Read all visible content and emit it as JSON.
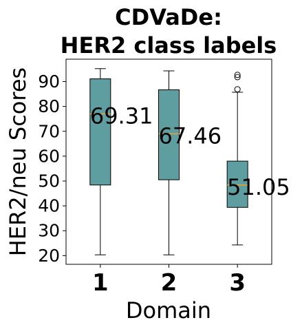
{
  "chart_data": {
    "type": "box",
    "title": "CDVaDe:\nHER2 class labels",
    "xlabel": "Domain",
    "ylabel": "HER2/neu Scores",
    "categories": [
      "1",
      "2",
      "3"
    ],
    "ylim": [
      16.5,
      99
    ],
    "yticks": [
      20,
      30,
      40,
      50,
      60,
      70,
      80,
      90
    ],
    "grid": false,
    "box_color": "#5f9ea0",
    "median_color": "#f0a030",
    "boxes": [
      {
        "category": "1",
        "whisker_low": 20.3,
        "q1": 48.4,
        "median": 77.0,
        "q3": 91.1,
        "whisker_high": 95.2,
        "outliers": [],
        "mean_label": "69.31"
      },
      {
        "category": "2",
        "whisker_low": 20.3,
        "q1": 50.5,
        "median": 69.0,
        "q3": 86.7,
        "whisker_high": 94.3,
        "outliers": [],
        "mean_label": "67.46"
      },
      {
        "category": "3",
        "whisker_low": 24.3,
        "q1": 39.4,
        "median": 48.4,
        "q3": 58.0,
        "whisker_high": 85.7,
        "outliers": [
          86.9,
          91.8,
          92.7
        ],
        "mean_label": "51.05"
      }
    ]
  }
}
